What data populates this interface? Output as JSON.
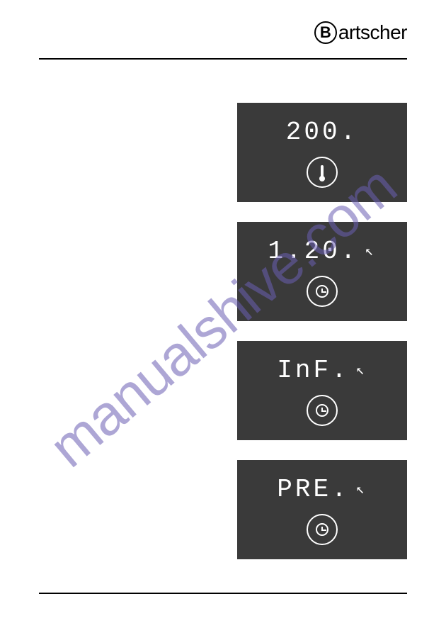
{
  "brand": {
    "letter": "B",
    "name": "artscher"
  },
  "watermark": {
    "text": "manualshive.com",
    "color": "#6b5fb3"
  },
  "displays": [
    {
      "type": "temperature",
      "value": "200.",
      "icon": "thermometer",
      "show_cursor": false,
      "bg_color": "#3a3a3a",
      "text_color": "#ffffff"
    },
    {
      "type": "timer",
      "value": "1.20.",
      "icon": "clock",
      "show_cursor": true,
      "bg_color": "#3a3a3a",
      "text_color": "#ffffff"
    },
    {
      "type": "timer",
      "value": "InF.",
      "icon": "clock",
      "show_cursor": true,
      "bg_color": "#3a3a3a",
      "text_color": "#ffffff"
    },
    {
      "type": "timer",
      "value": "PRE.",
      "icon": "clock",
      "show_cursor": true,
      "bg_color": "#3a3a3a",
      "text_color": "#ffffff"
    }
  ],
  "cursor_glyph": "↖"
}
